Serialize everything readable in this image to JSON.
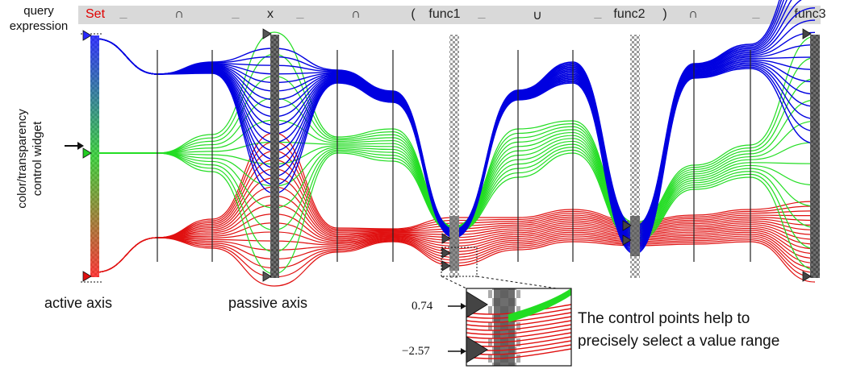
{
  "query": {
    "label": "query\nexpression",
    "tokens": [
      "Set",
      "_",
      "∩",
      "_",
      "x",
      "_",
      "∩",
      "(",
      "func1",
      "_",
      "∪",
      "_",
      "func2",
      ")",
      "∩",
      "_",
      "func3"
    ]
  },
  "labels": {
    "control_widget": "color/transparency\ncontrol widget",
    "active_axis": "active axis",
    "passive_axis": "passive axis",
    "caption_line1": "The control points help to",
    "caption_line2": "precisely select a value range"
  },
  "inset": {
    "upper_value": "0.74",
    "lower_value": "−2.57"
  },
  "colors": {
    "blue": "#0000e0",
    "green": "#22dd22",
    "red": "#e01010",
    "query_bar": "#d9d9d9",
    "set_token": "#e00000"
  }
}
